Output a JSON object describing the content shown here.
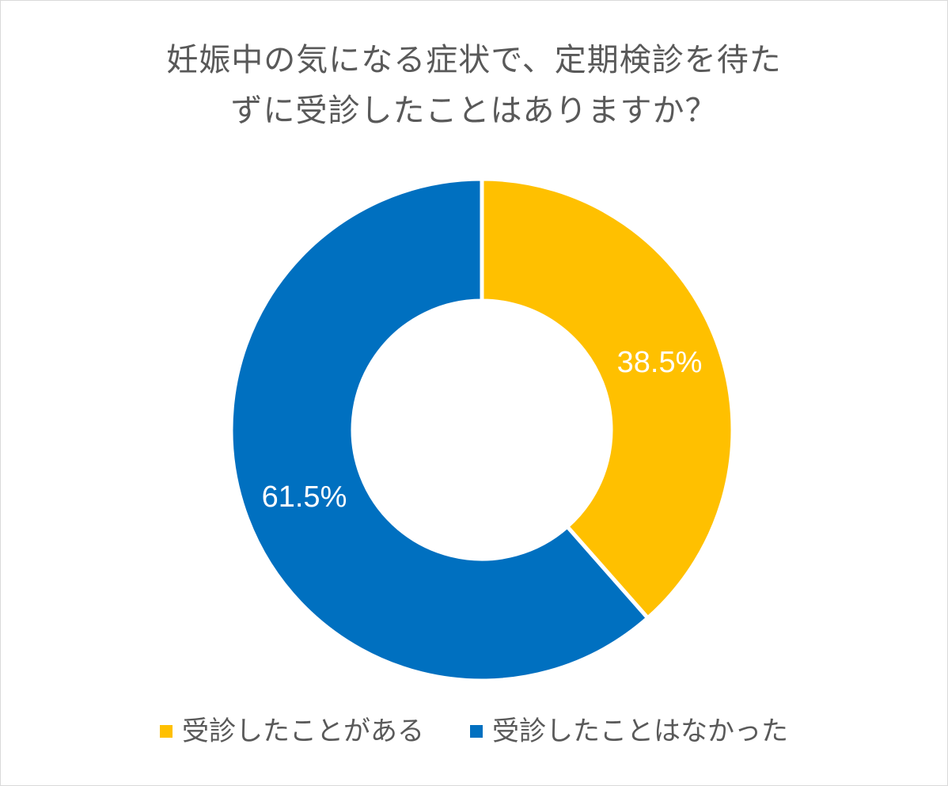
{
  "chart_data": {
    "type": "pie",
    "subtype": "donut",
    "title_lines": [
      "妊娠中の気になる症状で、定期検診を待た",
      "ずに受診したことはありますか？"
    ],
    "categories": [
      "受診したことがある",
      "受診したことはなかった"
    ],
    "values": [
      38.5,
      61.5
    ],
    "data_labels": [
      "38.5%",
      "61.5%"
    ],
    "colors": [
      "#FFC000",
      "#0070C0"
    ],
    "legend_position": "bottom"
  }
}
